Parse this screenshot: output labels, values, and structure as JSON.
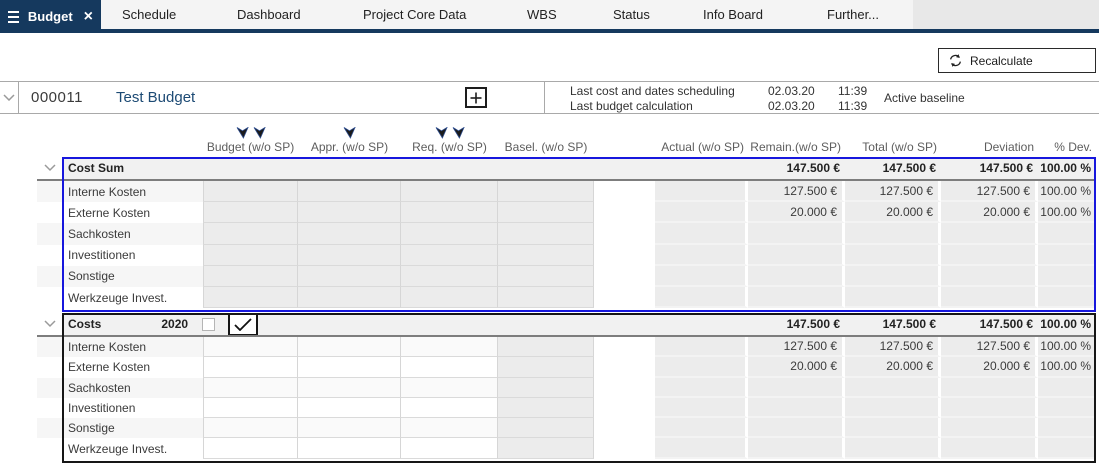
{
  "tabs": [
    {
      "label": "Budget",
      "active": true,
      "close_icon": "×"
    },
    {
      "label": "Schedule"
    },
    {
      "label": "Dashboard"
    },
    {
      "label": "Project Core Data"
    },
    {
      "label": "WBS"
    },
    {
      "label": "Status"
    },
    {
      "label": "Info Board"
    },
    {
      "label": "Further..."
    }
  ],
  "toolbar": {
    "recalculate_label": "Recalculate"
  },
  "project": {
    "id": "000011",
    "name": "Test Budget",
    "info_rows": [
      {
        "label": "Last cost and dates scheduling",
        "date": "02.03.20",
        "time": "11:39"
      },
      {
        "label": "Last budget calculation",
        "date": "02.03.20",
        "time": "11:39"
      }
    ],
    "baseline_status": "Active baseline"
  },
  "columns": [
    {
      "label": "Budget (w/o SP)",
      "filter_icons": 2
    },
    {
      "label": "Appr. (w/o SP)",
      "filter_icons": 1
    },
    {
      "label": "Req. (w/o SP)",
      "filter_icons": 2
    },
    {
      "label": "Basel. (w/o SP)",
      "filter_icons": 0
    },
    {
      "label": "Actual (w/o SP)",
      "filter_icons": 0
    },
    {
      "label": "Remain.(w/o SP)",
      "filter_icons": 0
    },
    {
      "label": "Total (w/o SP)",
      "filter_icons": 0
    },
    {
      "label": "Deviation",
      "filter_icons": 0
    },
    {
      "label": "% Dev.",
      "filter_icons": 0
    }
  ],
  "sections": [
    {
      "id": "cost-sum",
      "title": "Cost Sum",
      "selected": true,
      "editable": false,
      "totals": {
        "remain": "147.500 €",
        "total": "147.500 €",
        "deviation": "147.500 €",
        "dev_pct": "100.00 %"
      },
      "rows": [
        {
          "label": "Interne Kosten",
          "remain": "127.500 €",
          "total": "127.500 €",
          "deviation": "127.500 €",
          "dev_pct": "100.00 %"
        },
        {
          "label": "Externe Kosten",
          "remain": "20.000 €",
          "total": "20.000 €",
          "deviation": "20.000 €",
          "dev_pct": "100.00 %"
        },
        {
          "label": "Sachkosten",
          "remain": "",
          "total": "",
          "deviation": "",
          "dev_pct": ""
        },
        {
          "label": "Investitionen",
          "remain": "",
          "total": "",
          "deviation": "",
          "dev_pct": ""
        },
        {
          "label": "Sonstige",
          "remain": "",
          "total": "",
          "deviation": "",
          "dev_pct": ""
        },
        {
          "label": "Werkzeuge Invest.",
          "remain": "",
          "total": "",
          "deviation": "",
          "dev_pct": ""
        }
      ]
    },
    {
      "id": "costs-2020",
      "title": "Costs",
      "year": "2020",
      "selected": false,
      "editable": true,
      "year_checkbox_checked": false,
      "approval_checkbox_checked": true,
      "totals": {
        "remain": "147.500 €",
        "total": "147.500 €",
        "deviation": "147.500 €",
        "dev_pct": "100.00 %"
      },
      "rows": [
        {
          "label": "Interne Kosten",
          "remain": "127.500 €",
          "total": "127.500 €",
          "deviation": "127.500 €",
          "dev_pct": "100.00 %"
        },
        {
          "label": "Externe Kosten",
          "remain": "20.000 €",
          "total": "20.000 €",
          "deviation": "20.000 €",
          "dev_pct": "100.00 %"
        },
        {
          "label": "Sachkosten",
          "remain": "",
          "total": "",
          "deviation": "",
          "dev_pct": ""
        },
        {
          "label": "Investitionen",
          "remain": "",
          "total": "",
          "deviation": "",
          "dev_pct": ""
        },
        {
          "label": "Sonstige",
          "remain": "",
          "total": "",
          "deviation": "",
          "dev_pct": ""
        },
        {
          "label": "Werkzeuge Invest.",
          "remain": "",
          "total": "",
          "deviation": "",
          "dev_pct": ""
        }
      ]
    }
  ],
  "colors": {
    "accent_navy": "#15395e",
    "selection_blue": "#1717dd",
    "selection_black": "#161616",
    "cell_gray": "#ececec"
  }
}
